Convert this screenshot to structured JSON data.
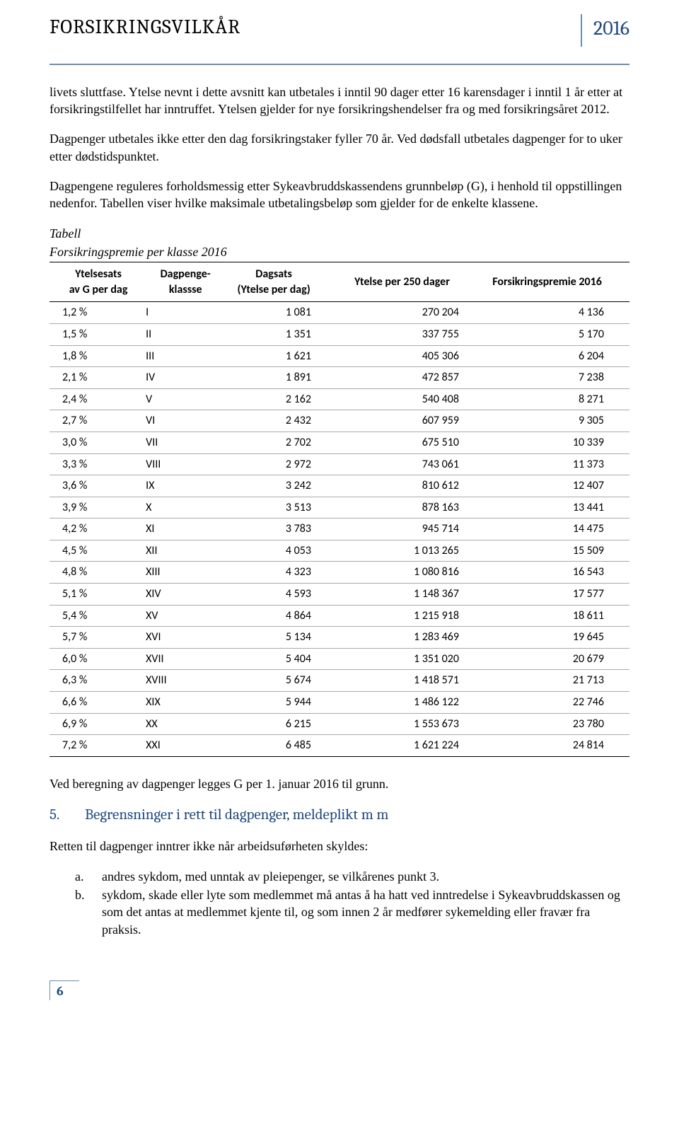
{
  "header": {
    "title": "FORSIKRINGSVILKÅR",
    "year": "2016"
  },
  "paragraphs": {
    "p1": "livets sluttfase. Ytelse nevnt i dette avsnitt kan utbetales i inntil 90 dager etter 16 karensdager i inntil 1 år etter at forsikringstilfellet har inntruffet. Ytelsen gjelder for nye forsikringshendelser fra og med forsikringsåret 2012.",
    "p2": "Dagpenger utbetales ikke etter den dag forsikringstaker fyller 70 år. Ved dødsfall utbetales dagpenger for to uker etter dødstidspunktet.",
    "p3": "Dagpengene reguleres forholdsmessig etter Sykeavbruddskassendens grunnbeløp (G), i henhold til oppstillingen nedenfor. Tabellen viser hvilke maksimale utbetalingsbeløp som gjelder for de enkelte klassene.",
    "table_caption_a": "Tabell",
    "table_caption_b": "Forsikringspremie per klasse 2016",
    "p4": "Ved beregning av dagpenger legges G per 1. januar 2016 til grunn.",
    "p5": "Retten til dagpenger inntrer ikke når arbeidsuførheten skyldes:"
  },
  "section5": {
    "num": "5.",
    "title": "Begrensninger i rett til dagpenger, meldeplikt m m"
  },
  "list": {
    "a_marker": "a.",
    "a_text": "andres sykdom, med unntak av pleiepenger, se vilkårenes punkt 3.",
    "b_marker": "b.",
    "b_text": "sykdom, skade eller lyte som medlemmet må antas å ha hatt ved inntredelse i Sykeavbruddskassen og som det antas at medlemmet kjente til, og som innen 2 år medfører sykemelding eller fravær fra praksis."
  },
  "footer": {
    "page": "6"
  },
  "table": {
    "columns": {
      "rate_l1": "Ytelsesats",
      "rate_l2": "av G per dag",
      "class_l1": "Dagpenge-",
      "class_l2": "klassse",
      "daily_l1": "Dagsats",
      "daily_l2": "(Ytelse per dag)",
      "y250": "Ytelse per 250 dager",
      "premie": "Forsikringspremie 2016"
    },
    "rows": [
      {
        "rate": "1,2 %",
        "cls": "I",
        "daily": "1 081",
        "y250": "270 204",
        "premie": "4 136"
      },
      {
        "rate": "1,5 %",
        "cls": "II",
        "daily": "1 351",
        "y250": "337 755",
        "premie": "5 170"
      },
      {
        "rate": "1,8 %",
        "cls": "III",
        "daily": "1 621",
        "y250": "405 306",
        "premie": "6 204"
      },
      {
        "rate": "2,1 %",
        "cls": "IV",
        "daily": "1 891",
        "y250": "472 857",
        "premie": "7 238"
      },
      {
        "rate": "2,4 %",
        "cls": "V",
        "daily": "2 162",
        "y250": "540 408",
        "premie": "8 271"
      },
      {
        "rate": "2,7 %",
        "cls": "VI",
        "daily": "2 432",
        "y250": "607 959",
        "premie": "9 305"
      },
      {
        "rate": "3,0 %",
        "cls": "VII",
        "daily": "2 702",
        "y250": "675 510",
        "premie": "10 339"
      },
      {
        "rate": "3,3 %",
        "cls": "VIII",
        "daily": "2 972",
        "y250": "743 061",
        "premie": "11 373"
      },
      {
        "rate": "3,6 %",
        "cls": "IX",
        "daily": "3 242",
        "y250": "810 612",
        "premie": "12 407"
      },
      {
        "rate": "3,9 %",
        "cls": "X",
        "daily": "3 513",
        "y250": "878 163",
        "premie": "13 441"
      },
      {
        "rate": "4,2 %",
        "cls": "XI",
        "daily": "3 783",
        "y250": "945 714",
        "premie": "14 475"
      },
      {
        "rate": "4,5 %",
        "cls": "XII",
        "daily": "4 053",
        "y250": "1 013 265",
        "premie": "15 509"
      },
      {
        "rate": "4,8 %",
        "cls": "XIII",
        "daily": "4 323",
        "y250": "1 080 816",
        "premie": "16 543"
      },
      {
        "rate": "5,1 %",
        "cls": "XIV",
        "daily": "4 593",
        "y250": "1 148 367",
        "premie": "17 577"
      },
      {
        "rate": "5,4 %",
        "cls": "XV",
        "daily": "4 864",
        "y250": "1 215 918",
        "premie": "18 611"
      },
      {
        "rate": "5,7 %",
        "cls": "XVI",
        "daily": "5 134",
        "y250": "1 283 469",
        "premie": "19 645"
      },
      {
        "rate": "6,0 %",
        "cls": "XVII",
        "daily": "5 404",
        "y250": "1 351 020",
        "premie": "20 679"
      },
      {
        "rate": "6,3 %",
        "cls": "XVIII",
        "daily": "5 674",
        "y250": "1 418 571",
        "premie": "21 713"
      },
      {
        "rate": "6,6 %",
        "cls": "XIX",
        "daily": "5 944",
        "y250": "1 486 122",
        "premie": "22 746"
      },
      {
        "rate": "6,9 %",
        "cls": "XX",
        "daily": "6 215",
        "y250": "1 553 673",
        "premie": "23 780"
      },
      {
        "rate": "7,2 %",
        "cls": "XXI",
        "daily": "6 485",
        "y250": "1 621 224",
        "premie": "24 814"
      }
    ]
  },
  "style": {
    "accent_color": "#1f497d",
    "rule_color": "#6b8cae",
    "body_font": "Times New Roman",
    "table_font": "Calibri"
  }
}
